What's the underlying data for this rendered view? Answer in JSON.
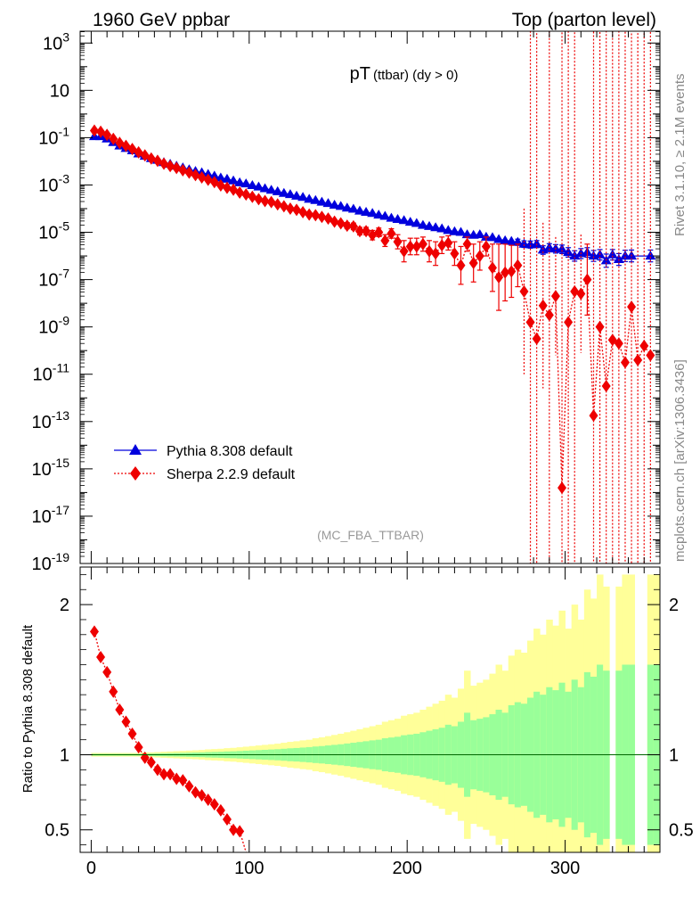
{
  "header": {
    "left": "1960 GeV ppbar",
    "right": "Top (parton level)"
  },
  "side_labels": {
    "top": "Rivet 3.1.10, ≥ 2.1M events",
    "bottom": "mcplots.cern.ch [arXiv:1306.3436]"
  },
  "chart_data": [
    {
      "type": "line",
      "panel": "main",
      "title_main": "pT",
      "title_sub": "(ttbar) (dy > 0)",
      "watermark": "(MC_FBA_TTBAR)",
      "xlabel": "",
      "ylabel": "",
      "y_scale": "log",
      "xlim": [
        -7,
        360
      ],
      "ylim_log10": [
        -19,
        3.5
      ],
      "y_tick_labels": [
        {
          "exp": 3,
          "label": "10",
          "sup": "3"
        },
        {
          "exp": 1,
          "label": "10",
          "sup": ""
        },
        {
          "exp": -1,
          "label": "10",
          "sup": "-1"
        },
        {
          "exp": -3,
          "label": "10",
          "sup": "-3"
        },
        {
          "exp": -5,
          "label": "10",
          "sup": "-5"
        },
        {
          "exp": -7,
          "label": "10",
          "sup": "-7"
        },
        {
          "exp": -9,
          "label": "10",
          "sup": "-9"
        },
        {
          "exp": -11,
          "label": "10",
          "sup": "-11"
        },
        {
          "exp": -13,
          "label": "10",
          "sup": "-13"
        },
        {
          "exp": -15,
          "label": "10",
          "sup": "-15"
        },
        {
          "exp": -17,
          "label": "10",
          "sup": "-17"
        },
        {
          "exp": -19,
          "label": "10",
          "sup": "-19"
        }
      ],
      "legend_position": "bottom-left",
      "series": [
        {
          "name": "Pythia 8.308 default",
          "color": "#0000dd",
          "marker": "triangle",
          "line": "solid",
          "x": [
            2,
            6,
            10,
            14,
            18,
            22,
            26,
            30,
            34,
            38,
            42,
            46,
            50,
            54,
            58,
            62,
            66,
            70,
            74,
            78,
            82,
            86,
            90,
            94,
            98,
            102,
            106,
            110,
            114,
            118,
            122,
            126,
            130,
            134,
            138,
            142,
            146,
            150,
            154,
            158,
            162,
            166,
            170,
            174,
            178,
            182,
            186,
            190,
            194,
            198,
            202,
            206,
            210,
            214,
            218,
            222,
            226,
            230,
            234,
            238,
            242,
            246,
            250,
            254,
            258,
            262,
            266,
            270,
            274,
            278,
            282,
            286,
            290,
            294,
            298,
            302,
            306,
            310,
            314,
            318,
            322,
            326,
            330,
            334,
            338,
            342,
            354
          ],
          "log10_y": [
            -0.95,
            -0.95,
            -1.05,
            -1.2,
            -1.35,
            -1.45,
            -1.55,
            -1.68,
            -1.78,
            -1.88,
            -1.95,
            -2.05,
            -2.12,
            -2.2,
            -2.27,
            -2.35,
            -2.42,
            -2.48,
            -2.55,
            -2.62,
            -2.7,
            -2.75,
            -2.82,
            -2.9,
            -2.95,
            -3.02,
            -3.08,
            -3.15,
            -3.22,
            -3.28,
            -3.35,
            -3.4,
            -3.47,
            -3.52,
            -3.6,
            -3.65,
            -3.72,
            -3.78,
            -3.85,
            -3.9,
            -3.97,
            -4.02,
            -4.1,
            -4.15,
            -4.2,
            -4.27,
            -4.32,
            -4.4,
            -4.45,
            -4.5,
            -4.57,
            -4.62,
            -4.7,
            -4.75,
            -4.8,
            -4.85,
            -4.92,
            -4.97,
            -5.0,
            -5.1,
            -5.12,
            -5.1,
            -5.2,
            -5.22,
            -5.3,
            -5.35,
            -5.38,
            -5.42,
            -5.5,
            -5.52,
            -5.5,
            -5.75,
            -5.65,
            -5.7,
            -5.72,
            -5.85,
            -6.0,
            -5.9,
            -5.85,
            -6.0,
            -5.95,
            -6.2,
            -5.95,
            -6.15,
            -6.0,
            -6.0,
            -6.0
          ],
          "log10_err": [
            0.05,
            0.05,
            0.04,
            0.03,
            0.03,
            0.02,
            0.02,
            0.02,
            0.02,
            0.02,
            0.02,
            0.02,
            0.02,
            0.02,
            0.02,
            0.02,
            0.02,
            0.02,
            0.02,
            0.02,
            0.02,
            0.02,
            0.02,
            0.02,
            0.02,
            0.02,
            0.02,
            0.02,
            0.02,
            0.02,
            0.03,
            0.03,
            0.03,
            0.03,
            0.03,
            0.03,
            0.03,
            0.03,
            0.03,
            0.03,
            0.04,
            0.04,
            0.04,
            0.04,
            0.04,
            0.04,
            0.04,
            0.05,
            0.05,
            0.05,
            0.05,
            0.06,
            0.06,
            0.06,
            0.06,
            0.07,
            0.07,
            0.08,
            0.08,
            0.09,
            0.09,
            0.09,
            0.1,
            0.1,
            0.11,
            0.12,
            0.12,
            0.13,
            0.14,
            0.15,
            0.15,
            0.18,
            0.17,
            0.18,
            0.18,
            0.2,
            0.22,
            0.21,
            0.2,
            0.23,
            0.22,
            0.28,
            0.22,
            0.25,
            0.24,
            0.25,
            0.25
          ]
        },
        {
          "name": "Sherpa 2.2.9 default",
          "color": "#ee0000",
          "marker": "diamond",
          "line": "dotted",
          "x": [
            2,
            6,
            10,
            14,
            18,
            22,
            26,
            30,
            34,
            38,
            42,
            46,
            50,
            54,
            58,
            62,
            66,
            70,
            74,
            78,
            82,
            86,
            90,
            94,
            98,
            102,
            106,
            110,
            114,
            118,
            122,
            126,
            130,
            134,
            138,
            142,
            146,
            150,
            154,
            158,
            162,
            166,
            170,
            174,
            178,
            182,
            186,
            190,
            194,
            198,
            202,
            206,
            210,
            214,
            218,
            222,
            226,
            230,
            234,
            238,
            242,
            246,
            250,
            254,
            258,
            262,
            266,
            270,
            274,
            278,
            282,
            286,
            290,
            294,
            298,
            302,
            306,
            310,
            314,
            318,
            322,
            326,
            330,
            334,
            338,
            342,
            346,
            350,
            354
          ],
          "log10_y": [
            -0.7,
            -0.75,
            -0.88,
            -1.05,
            -1.22,
            -1.35,
            -1.48,
            -1.62,
            -1.75,
            -1.88,
            -1.98,
            -2.1,
            -2.2,
            -2.28,
            -2.38,
            -2.48,
            -2.58,
            -2.68,
            -2.78,
            -2.88,
            -3.02,
            -3.12,
            -3.2,
            -3.32,
            -3.4,
            -3.5,
            -3.6,
            -3.68,
            -3.72,
            -3.82,
            -3.9,
            -4.0,
            -4.05,
            -4.15,
            -4.25,
            -4.28,
            -4.35,
            -4.42,
            -4.55,
            -4.62,
            -4.72,
            -4.75,
            -4.95,
            -4.95,
            -5.12,
            -5.0,
            -5.35,
            -5.05,
            -5.4,
            -5.8,
            -5.6,
            -5.6,
            -5.5,
            -5.8,
            -5.9,
            -5.55,
            -5.45,
            -5.9,
            -6.4,
            -5.5,
            -6.3,
            -6.0,
            -5.6,
            -6.5,
            -6.9,
            -6.7,
            -6.65,
            -6.4,
            -7.5,
            -8.8,
            -9.5,
            -8.1,
            -8.5,
            -7.7,
            -15.8,
            -8.8,
            -7.5,
            -7.6,
            -7.0,
            -12.75,
            -9.0,
            -11.5,
            -9.55,
            -9.7,
            -10.5,
            -8.15,
            -10.4,
            -9.8,
            -10.2
          ],
          "log10_err": [
            0.05,
            0.05,
            0.04,
            0.03,
            0.03,
            0.02,
            0.02,
            0.02,
            0.02,
            0.02,
            0.02,
            0.02,
            0.02,
            0.03,
            0.03,
            0.03,
            0.03,
            0.03,
            0.03,
            0.04,
            0.04,
            0.04,
            0.04,
            0.05,
            0.05,
            0.05,
            0.05,
            0.06,
            0.06,
            0.06,
            0.07,
            0.07,
            0.08,
            0.08,
            0.09,
            0.09,
            0.1,
            0.1,
            0.12,
            0.12,
            0.13,
            0.14,
            0.16,
            0.16,
            0.2,
            0.18,
            0.25,
            0.2,
            0.3,
            0.45,
            0.35,
            0.35,
            0.3,
            0.45,
            0.5,
            0.35,
            0.3,
            0.5,
            0.8,
            0.3,
            0.8,
            0.6,
            0.4,
            1.0,
            1.4,
            1.2,
            1.1,
            0.9,
            3.5,
            20,
            20,
            3.5,
            20,
            2.5,
            20,
            20,
            20,
            2.5,
            1.5,
            20,
            20,
            20,
            20,
            20,
            20,
            20,
            20,
            20,
            20
          ]
        }
      ]
    },
    {
      "type": "line",
      "panel": "ratio",
      "xlabel": "",
      "ylabel": "Ratio to Pythia 8.308 default",
      "xlim": [
        -7,
        360
      ],
      "ylim": [
        0.35,
        2.25
      ],
      "x_ticks": [
        0,
        100,
        200,
        300
      ],
      "x_tick_labels": [
        "0",
        "100",
        "200",
        "300"
      ],
      "y_ticks": [
        0.5,
        1,
        2
      ],
      "y_tick_labels": [
        "0.5",
        "1",
        "2"
      ],
      "reference_line": 1,
      "band_colors": {
        "inner": "#99ff99",
        "outer": "#ffff99"
      },
      "band_x": [
        0,
        4,
        8,
        12,
        16,
        20,
        24,
        28,
        32,
        36,
        40,
        44,
        48,
        52,
        56,
        60,
        64,
        68,
        72,
        76,
        80,
        84,
        88,
        92,
        96,
        100,
        104,
        108,
        112,
        116,
        120,
        124,
        128,
        132,
        136,
        140,
        144,
        148,
        152,
        156,
        160,
        164,
        168,
        172,
        176,
        180,
        184,
        188,
        192,
        196,
        200,
        204,
        208,
        212,
        216,
        220,
        224,
        228,
        232,
        236,
        240,
        244,
        248,
        252,
        256,
        260,
        264,
        268,
        272,
        276,
        280,
        284,
        288,
        292,
        296,
        300,
        304,
        308,
        312,
        316,
        320,
        324,
        328,
        332,
        336,
        340,
        344,
        348,
        352,
        356
      ],
      "band_inner": [
        0.006,
        0.006,
        0.006,
        0.006,
        0.006,
        0.006,
        0.006,
        0.006,
        0.008,
        0.008,
        0.009,
        0.01,
        0.011,
        0.012,
        0.013,
        0.014,
        0.015,
        0.016,
        0.018,
        0.019,
        0.02,
        0.022,
        0.023,
        0.025,
        0.027,
        0.029,
        0.031,
        0.033,
        0.035,
        0.037,
        0.04,
        0.043,
        0.045,
        0.048,
        0.051,
        0.055,
        0.058,
        0.062,
        0.066,
        0.07,
        0.075,
        0.08,
        0.085,
        0.09,
        0.096,
        0.1,
        0.11,
        0.115,
        0.12,
        0.13,
        0.135,
        0.14,
        0.15,
        0.16,
        0.17,
        0.18,
        0.2,
        0.19,
        0.22,
        0.28,
        0.23,
        0.24,
        0.25,
        0.27,
        0.3,
        0.28,
        0.33,
        0.35,
        0.34,
        0.38,
        0.42,
        0.4,
        0.45,
        0.43,
        0.48,
        0.42,
        0.5,
        0.45,
        0.55,
        0.52,
        0.6,
        0.56,
        0.6,
        0.56,
        0.6,
        0.6,
        0.6,
        0.6,
        0.6,
        0.6
      ],
      "band_outer": [
        0.012,
        0.012,
        0.012,
        0.012,
        0.012,
        0.012,
        0.012,
        0.012,
        0.016,
        0.016,
        0.018,
        0.02,
        0.022,
        0.024,
        0.026,
        0.028,
        0.03,
        0.032,
        0.036,
        0.038,
        0.04,
        0.044,
        0.046,
        0.05,
        0.054,
        0.058,
        0.062,
        0.066,
        0.07,
        0.074,
        0.08,
        0.086,
        0.09,
        0.096,
        0.1,
        0.11,
        0.116,
        0.124,
        0.132,
        0.14,
        0.15,
        0.16,
        0.17,
        0.18,
        0.19,
        0.2,
        0.22,
        0.23,
        0.24,
        0.26,
        0.27,
        0.28,
        0.3,
        0.32,
        0.34,
        0.36,
        0.4,
        0.38,
        0.44,
        0.56,
        0.46,
        0.48,
        0.5,
        0.54,
        0.6,
        0.56,
        0.66,
        0.7,
        0.68,
        0.76,
        0.84,
        0.8,
        0.9,
        0.86,
        0.96,
        0.84,
        1.0,
        0.9,
        1.1,
        1.04,
        1.2,
        1.12,
        1.2,
        1.12,
        1.2,
        1.2,
        1.2,
        1.2,
        1.2,
        1.2
      ],
      "band_gaps": [
        [
          326,
          330
        ],
        [
          342,
          350
        ]
      ],
      "series": [
        {
          "name": "Sherpa 2.2.9 default",
          "color": "#ee0000",
          "x": [
            2,
            6,
            10,
            14,
            18,
            22,
            26,
            30,
            34,
            38,
            42,
            46,
            50,
            54,
            58,
            62,
            66,
            70,
            74,
            78,
            82,
            86,
            90,
            94
          ],
          "y": [
            1.82,
            1.65,
            1.55,
            1.42,
            1.3,
            1.22,
            1.14,
            1.05,
            0.98,
            0.95,
            0.9,
            0.87,
            0.87,
            0.84,
            0.83,
            0.79,
            0.75,
            0.73,
            0.7,
            0.67,
            0.63,
            0.57,
            0.5,
            0.49
          ],
          "trail_x": [
            94,
            98
          ],
          "trail_y": [
            0.49,
            0.35
          ]
        }
      ]
    }
  ]
}
